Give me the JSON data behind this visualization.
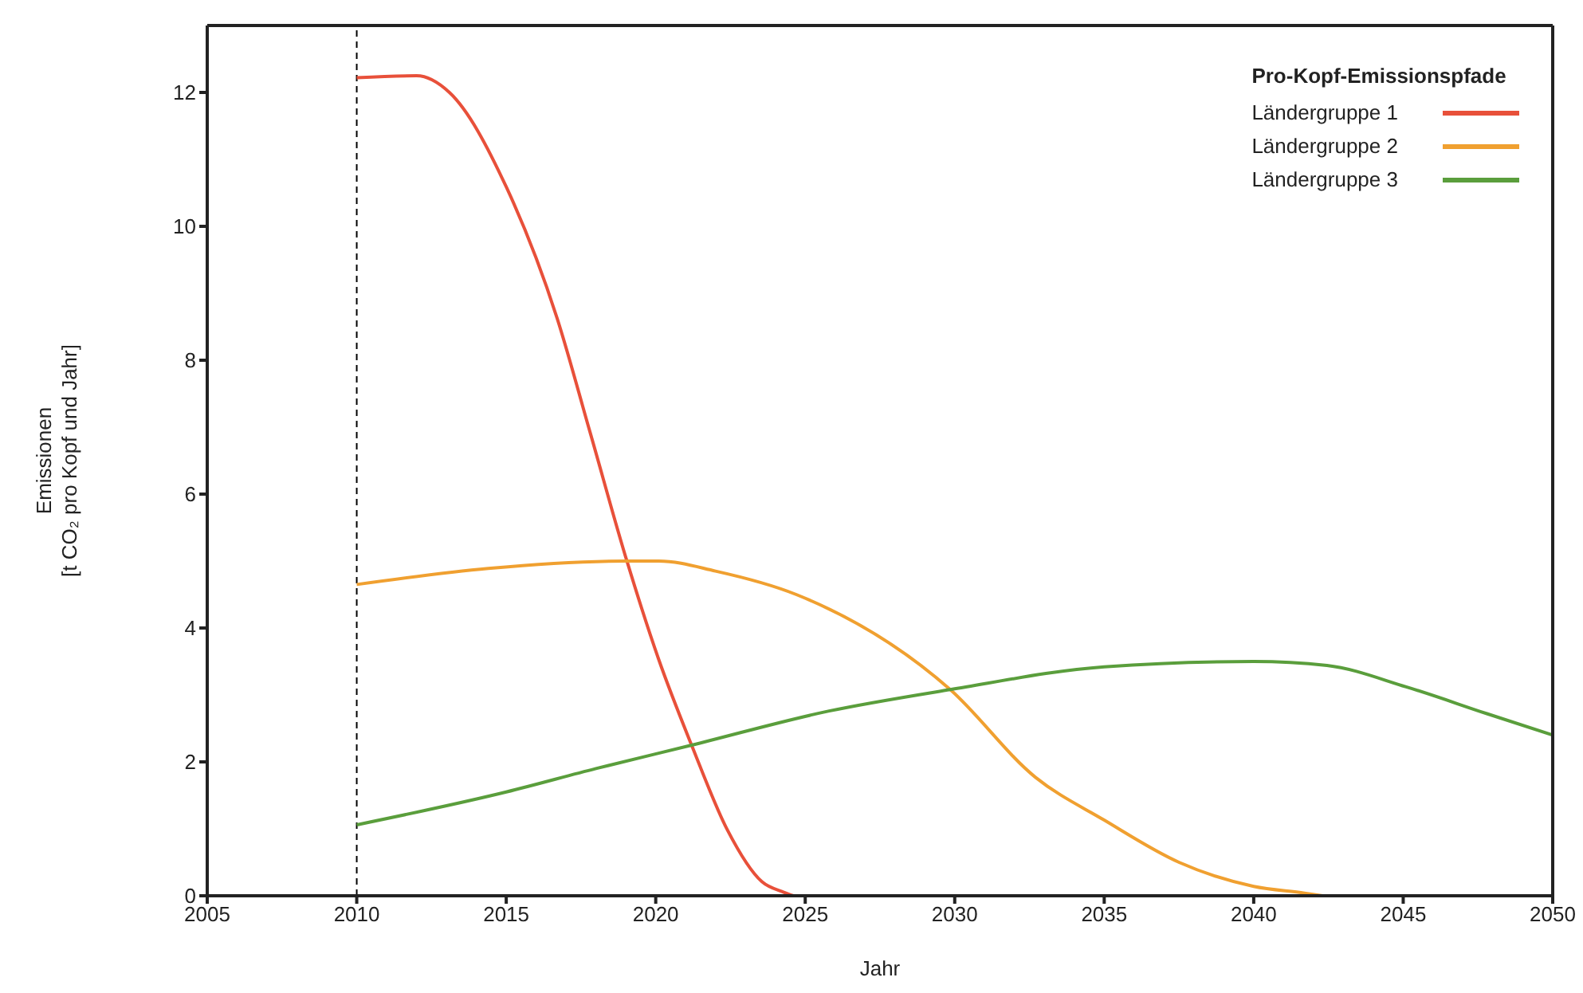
{
  "chart_data": {
    "type": "line",
    "xlabel": "Jahr",
    "ylabel": "Emissionen\n[t CO₂ pro Kopf und Jahr]",
    "legend_title": "Pro-Kopf-Emissionspfade",
    "xlim": [
      2005,
      2050
    ],
    "xticks": [
      2005,
      2010,
      2015,
      2020,
      2025,
      2030,
      2035,
      2040,
      2045,
      2050
    ],
    "ylim": [
      0,
      13
    ],
    "yticks": [
      0,
      2,
      4,
      6,
      8,
      10,
      12
    ],
    "legend": "top right",
    "marker": "none",
    "line_style": "solid",
    "ref_lines": [
      {
        "axis": "x",
        "value": 2010,
        "color": "#000000",
        "line_style": "dashed"
      }
    ],
    "series": [
      {
        "name": "Ländergruppe 1",
        "color": "#e8503a",
        "x": [
          2010,
          2012,
          2013.1,
          2015,
          2016.7,
          2017.8,
          2019.05,
          2020.1,
          2021.2,
          2022.4,
          2023.55,
          2024.3,
          2024.6
        ],
        "values": [
          12.22,
          12.25,
          12.0,
          10.59,
          8.63,
          6.93,
          4.98,
          3.53,
          2.25,
          0.98,
          0.21,
          0.05,
          0
        ]
      },
      {
        "name": "Ländergruppe 2",
        "color": "#f0a030",
        "x": [
          2010,
          2014.4,
          2019,
          2020.1,
          2022,
          2024.7,
          2029.85,
          2032.7,
          2035,
          2037.5,
          2040,
          2041.7,
          2042.3
        ],
        "values": [
          4.65,
          4.89,
          5.0,
          5.0,
          4.85,
          4.5,
          3.08,
          1.77,
          1.13,
          0.5,
          0.14,
          0.04,
          0
        ]
      },
      {
        "name": "Ländergruppe 3",
        "color": "#5a9e3c",
        "x": [
          2010,
          2015,
          2018,
          2021.2,
          2025.8,
          2029.85,
          2035,
          2040,
          2042.45,
          2045.1,
          2047.8,
          2050
        ],
        "values": [
          1.06,
          1.55,
          1.9,
          2.25,
          2.76,
          3.08,
          3.42,
          3.5,
          3.44,
          3.12,
          2.72,
          2.4
        ]
      }
    ]
  }
}
